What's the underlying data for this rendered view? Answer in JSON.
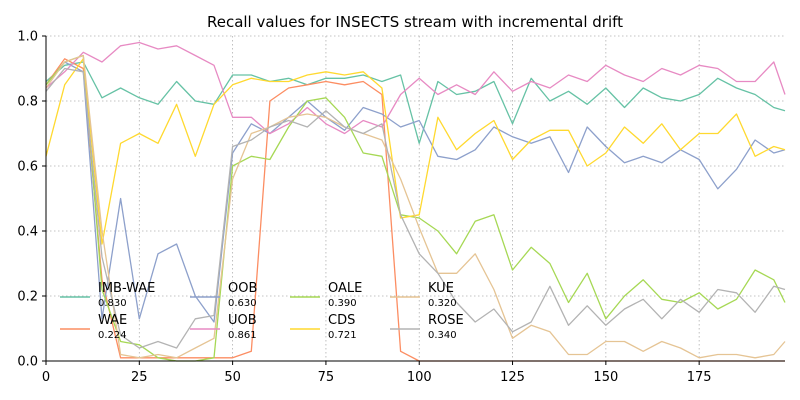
{
  "chart_data": {
    "type": "line",
    "title": "Recall values for INSECTS stream with incremental drift",
    "xlabel": "",
    "ylabel": "",
    "xlim": [
      0,
      198
    ],
    "ylim": [
      0.0,
      1.0
    ],
    "xticks": [
      0,
      25,
      50,
      75,
      100,
      125,
      150,
      175
    ],
    "yticks": [
      0.0,
      0.2,
      0.4,
      0.6,
      0.8,
      1.0
    ],
    "xtick_labels": [
      "0",
      "25",
      "50",
      "75",
      "100",
      "125",
      "150",
      "175"
    ],
    "ytick_labels": [
      "0.0",
      "0.2",
      "0.4",
      "0.6",
      "0.8",
      "1.0"
    ],
    "grid": true,
    "legend_position": "lower-left",
    "x": [
      0,
      5,
      10,
      15,
      20,
      25,
      30,
      35,
      40,
      45,
      50,
      55,
      60,
      65,
      70,
      75,
      80,
      85,
      90,
      95,
      100,
      105,
      110,
      115,
      120,
      125,
      130,
      135,
      140,
      145,
      150,
      155,
      160,
      165,
      170,
      175,
      180,
      185,
      190,
      195,
      198
    ],
    "series": [
      {
        "name": "IMB-WAE",
        "score": "0.830",
        "color": "#66c2a5",
        "values": [
          0.86,
          0.91,
          0.92,
          0.81,
          0.84,
          0.81,
          0.79,
          0.86,
          0.8,
          0.79,
          0.88,
          0.88,
          0.86,
          0.87,
          0.85,
          0.87,
          0.87,
          0.88,
          0.86,
          0.88,
          0.67,
          0.86,
          0.82,
          0.83,
          0.86,
          0.73,
          0.87,
          0.8,
          0.83,
          0.79,
          0.84,
          0.78,
          0.84,
          0.81,
          0.8,
          0.82,
          0.87,
          0.84,
          0.82,
          0.78,
          0.77
        ]
      },
      {
        "name": "WAE",
        "score": "0.224",
        "color": "#fc8d62",
        "values": [
          0.85,
          0.93,
          0.9,
          0.25,
          0.01,
          0.01,
          0.01,
          0.01,
          0.01,
          0.01,
          0.01,
          0.03,
          0.8,
          0.84,
          0.85,
          0.86,
          0.85,
          0.86,
          0.82,
          0.03,
          0.0,
          0.0,
          0.0,
          0.0,
          0.0,
          0.0,
          0.0,
          0.0,
          0.0,
          0.0,
          0.0,
          0.0,
          0.0,
          0.0,
          0.0,
          0.0,
          0.0,
          0.0,
          0.0,
          0.0,
          0.0
        ]
      },
      {
        "name": "OOB",
        "score": "0.630",
        "color": "#8da0cb",
        "values": [
          0.85,
          0.92,
          0.89,
          0.13,
          0.5,
          0.13,
          0.33,
          0.36,
          0.2,
          0.12,
          0.64,
          0.73,
          0.7,
          0.75,
          0.8,
          0.75,
          0.71,
          0.78,
          0.76,
          0.72,
          0.74,
          0.63,
          0.62,
          0.65,
          0.72,
          0.69,
          0.67,
          0.69,
          0.58,
          0.72,
          0.66,
          0.61,
          0.63,
          0.61,
          0.65,
          0.62,
          0.53,
          0.59,
          0.68,
          0.64,
          0.65
        ]
      },
      {
        "name": "UOB",
        "score": "0.861",
        "color": "#e78ac3",
        "values": [
          0.84,
          0.89,
          0.95,
          0.92,
          0.97,
          0.98,
          0.96,
          0.97,
          0.94,
          0.91,
          0.75,
          0.75,
          0.7,
          0.73,
          0.78,
          0.73,
          0.7,
          0.74,
          0.72,
          0.82,
          0.87,
          0.82,
          0.85,
          0.82,
          0.89,
          0.83,
          0.86,
          0.84,
          0.88,
          0.86,
          0.91,
          0.88,
          0.86,
          0.9,
          0.88,
          0.91,
          0.9,
          0.86,
          0.86,
          0.92,
          0.82
        ]
      },
      {
        "name": "OALE",
        "score": "0.390",
        "color": "#a6d854",
        "values": [
          0.85,
          0.92,
          0.94,
          0.22,
          0.06,
          0.05,
          0.01,
          0.0,
          0.0,
          0.01,
          0.6,
          0.63,
          0.62,
          0.72,
          0.8,
          0.81,
          0.75,
          0.64,
          0.63,
          0.45,
          0.44,
          0.4,
          0.33,
          0.43,
          0.45,
          0.28,
          0.35,
          0.3,
          0.18,
          0.27,
          0.13,
          0.2,
          0.25,
          0.19,
          0.18,
          0.21,
          0.16,
          0.19,
          0.28,
          0.25,
          0.18
        ]
      },
      {
        "name": "CDS",
        "score": "0.721",
        "color": "#ffd92f",
        "values": [
          0.63,
          0.85,
          0.93,
          0.36,
          0.67,
          0.7,
          0.67,
          0.79,
          0.63,
          0.79,
          0.85,
          0.87,
          0.86,
          0.86,
          0.88,
          0.89,
          0.88,
          0.89,
          0.84,
          0.44,
          0.45,
          0.75,
          0.65,
          0.7,
          0.74,
          0.62,
          0.68,
          0.71,
          0.71,
          0.6,
          0.64,
          0.72,
          0.67,
          0.73,
          0.65,
          0.7,
          0.7,
          0.76,
          0.63,
          0.66,
          0.65
        ]
      },
      {
        "name": "KUE",
        "score": "0.320",
        "color": "#e5c494",
        "values": [
          0.84,
          0.92,
          0.94,
          0.4,
          0.02,
          0.01,
          0.02,
          0.01,
          0.04,
          0.07,
          0.56,
          0.7,
          0.72,
          0.75,
          0.76,
          0.75,
          0.72,
          0.7,
          0.68,
          0.56,
          0.41,
          0.27,
          0.27,
          0.33,
          0.22,
          0.07,
          0.11,
          0.09,
          0.02,
          0.02,
          0.06,
          0.06,
          0.03,
          0.06,
          0.04,
          0.01,
          0.02,
          0.02,
          0.01,
          0.02,
          0.06
        ]
      },
      {
        "name": "ROSE",
        "score": "0.340",
        "color": "#b3b3b3",
        "values": [
          0.83,
          0.9,
          0.89,
          0.32,
          0.08,
          0.04,
          0.06,
          0.04,
          0.13,
          0.14,
          0.66,
          0.68,
          0.72,
          0.74,
          0.72,
          0.77,
          0.72,
          0.7,
          0.73,
          0.45,
          0.33,
          0.27,
          0.18,
          0.12,
          0.16,
          0.09,
          0.12,
          0.23,
          0.11,
          0.17,
          0.11,
          0.16,
          0.19,
          0.13,
          0.19,
          0.15,
          0.22,
          0.21,
          0.15,
          0.23,
          0.22
        ]
      }
    ]
  }
}
